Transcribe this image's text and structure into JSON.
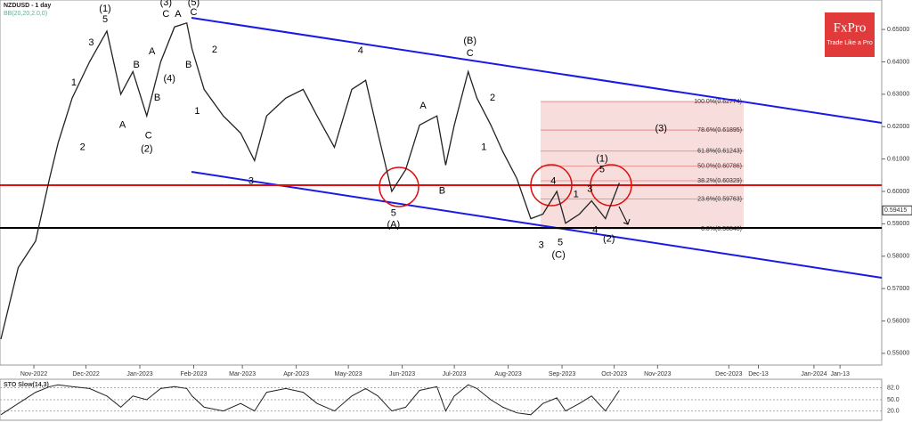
{
  "chart_data": {
    "type": "line",
    "title": "NZDUSD - 1 day",
    "indicator_label": "BB(20,20,2.0,0)",
    "logo": {
      "name": "FxPro",
      "tagline": "Trade Like a Pro"
    },
    "x": [
      12,
      22,
      32,
      40,
      45,
      53,
      63,
      73,
      81,
      88,
      96,
      104,
      112,
      119,
      122,
      129,
      140,
      150,
      158,
      165,
      176,
      186,
      194,
      204,
      214,
      222,
      229,
      237,
      245,
      253,
      263,
      268,
      273,
      281,
      286,
      294,
      301,
      309,
      317,
      324,
      332,
      337,
      345,
      352,
      360,
      368
    ],
    "series": [
      {
        "name": "NZDUSD",
        "color": "#222222",
        "values": [
          0.5544,
          0.5765,
          0.5847,
          0.604,
          0.615,
          0.6288,
          0.64,
          0.6495,
          0.63,
          0.637,
          0.6233,
          0.64,
          0.6508,
          0.652,
          0.644,
          0.6315,
          0.6233,
          0.618,
          0.6095,
          0.6233,
          0.6288,
          0.6315,
          0.6233,
          0.6136,
          0.6315,
          0.6343,
          0.618,
          0.6,
          0.6067,
          0.6205,
          0.6233,
          0.6081,
          0.6205,
          0.637,
          0.6288,
          0.6205,
          0.6122,
          0.604,
          0.5916,
          0.593,
          0.6,
          0.5902,
          0.593,
          0.5971,
          0.5916,
          0.6026
        ]
      }
    ],
    "xlim": [
      11.5,
      519
    ],
    "xticks": [
      {
        "value": 31,
        "label": "Nov-2022"
      },
      {
        "value": 61,
        "label": "Dec-2022"
      },
      {
        "value": 92,
        "label": "Jan-2023"
      },
      {
        "value": 123,
        "label": "Feb-2023"
      },
      {
        "value": 151,
        "label": "Mar-2023"
      },
      {
        "value": 182,
        "label": "Apr-2023"
      },
      {
        "value": 212,
        "label": "May-2023"
      },
      {
        "value": 243,
        "label": "Jun-2023"
      },
      {
        "value": 273,
        "label": "Jul-2023"
      },
      {
        "value": 304,
        "label": "Aug-2023"
      },
      {
        "value": 335,
        "label": "Sep-2023"
      },
      {
        "value": 365,
        "label": "Oct-2023"
      },
      {
        "value": 390,
        "label": "Nov-2023"
      },
      {
        "value": 431,
        "label": "Dec-2023"
      },
      {
        "value": 448,
        "label": "Dec-13"
      },
      {
        "value": 480,
        "label": "Jan-2024"
      },
      {
        "value": 495,
        "label": "Jan-13"
      }
    ],
    "ylim": [
      0.5464,
      0.6591
    ],
    "yticks": [
      {
        "value": 0.55,
        "label": "0.55000"
      },
      {
        "value": 0.56,
        "label": "0.56000"
      },
      {
        "value": 0.57,
        "label": "0.57000"
      },
      {
        "value": 0.58,
        "label": "0.58000"
      },
      {
        "value": 0.59,
        "label": "0.59000"
      },
      {
        "value": 0.6,
        "label": "0.60000"
      },
      {
        "value": 0.61,
        "label": "0.61000"
      },
      {
        "value": 0.62,
        "label": "0.62000"
      },
      {
        "value": 0.63,
        "label": "0.63000"
      },
      {
        "value": 0.64,
        "label": "0.64000"
      },
      {
        "value": 0.65,
        "label": "0.65000"
      }
    ],
    "current_price": {
      "value": 0.59415,
      "label": "0.59415"
    },
    "fib_levels": [
      {
        "value": 0.62774,
        "label": "100.0%(0.62774)"
      },
      {
        "value": 0.61895,
        "label": "78.6%(0.61895)"
      },
      {
        "value": 0.61243,
        "label": "61.8%(0.61243)"
      },
      {
        "value": 0.60786,
        "label": "50.0%(0.60786)"
      },
      {
        "value": 0.60329,
        "label": "38.2%(0.60329)"
      },
      {
        "value": 0.59763,
        "label": "23.6%(0.59763)"
      },
      {
        "value": 0.58848,
        "label": "0.0%(0.58848)"
      }
    ],
    "annotations": [
      {
        "text": "(1)",
        "x": 72,
        "y": 0.6563
      },
      {
        "text": "5",
        "x": 72,
        "y": 0.653
      },
      {
        "text": "3",
        "x": 64,
        "y": 0.6459
      },
      {
        "text": "1",
        "x": 54,
        "y": 0.6335
      },
      {
        "text": "2",
        "x": 59,
        "y": 0.6136
      },
      {
        "text": "B",
        "x": 90,
        "y": 0.639
      },
      {
        "text": "A",
        "x": 82,
        "y": 0.6205
      },
      {
        "text": "C",
        "x": 97,
        "y": 0.6172
      },
      {
        "text": "(2)",
        "x": 96,
        "y": 0.6131
      },
      {
        "text": "A",
        "x": 99,
        "y": 0.6431
      },
      {
        "text": "B",
        "x": 102,
        "y": 0.6288
      },
      {
        "text": "(4)",
        "x": 109,
        "y": 0.6348
      },
      {
        "text": "(3)",
        "x": 107,
        "y": 0.6583
      },
      {
        "text": "C",
        "x": 107,
        "y": 0.6547
      },
      {
        "text": "A",
        "x": 114,
        "y": 0.6547
      },
      {
        "text": "(5)",
        "x": 123,
        "y": 0.6583
      },
      {
        "text": "C",
        "x": 123,
        "y": 0.6552
      },
      {
        "text": "B",
        "x": 120,
        "y": 0.639
      },
      {
        "text": "2",
        "x": 135,
        "y": 0.6437
      },
      {
        "text": "1",
        "x": 125,
        "y": 0.6247
      },
      {
        "text": "3",
        "x": 156,
        "y": 0.6032
      },
      {
        "text": "4",
        "x": 219,
        "y": 0.6434
      },
      {
        "text": "(B)",
        "x": 282,
        "y": 0.6464
      },
      {
        "text": "C",
        "x": 282,
        "y": 0.6426
      },
      {
        "text": "A",
        "x": 255,
        "y": 0.6263
      },
      {
        "text": "B",
        "x": 266,
        "y": 0.6001
      },
      {
        "text": "1",
        "x": 290,
        "y": 0.6136
      },
      {
        "text": "2",
        "x": 295,
        "y": 0.6288
      },
      {
        "text": "5",
        "x": 238,
        "y": 0.5933
      },
      {
        "text": "(A)",
        "x": 238,
        "y": 0.5897
      },
      {
        "text": "4",
        "x": 330,
        "y": 0.6032
      },
      {
        "text": "3",
        "x": 323,
        "y": 0.5833
      },
      {
        "text": "5",
        "x": 334,
        "y": 0.5842
      },
      {
        "text": "(C)",
        "x": 333,
        "y": 0.5803
      },
      {
        "text": "(1)",
        "x": 358,
        "y": 0.61
      },
      {
        "text": "5",
        "x": 358,
        "y": 0.6067
      },
      {
        "text": "3",
        "x": 351,
        "y": 0.6007
      },
      {
        "text": "1",
        "x": 343,
        "y": 0.599
      },
      {
        "text": "4",
        "x": 354,
        "y": 0.588
      },
      {
        "text": "(2)",
        "x": 362,
        "y": 0.5853
      },
      {
        "text": "(3)",
        "x": 392,
        "y": 0.6194
      }
    ],
    "oscillator": {
      "title": "STO Slow(14,3)",
      "color": "#222222",
      "values": [
        10,
        40,
        70,
        85,
        90,
        85,
        80,
        60,
        30,
        60,
        50,
        80,
        85,
        80,
        60,
        30,
        20,
        40,
        20,
        70,
        80,
        70,
        40,
        20,
        60,
        80,
        60,
        20,
        30,
        75,
        85,
        20,
        60,
        90,
        80,
        50,
        30,
        15,
        10,
        40,
        55,
        20,
        40,
        60,
        20,
        75
      ],
      "ylim": [
        0,
        100
      ],
      "yticks": [
        {
          "value": 82,
          "label": "82.0"
        },
        {
          "value": 50,
          "label": "50.0"
        },
        {
          "value": 20,
          "label": "20.0"
        }
      ]
    }
  }
}
